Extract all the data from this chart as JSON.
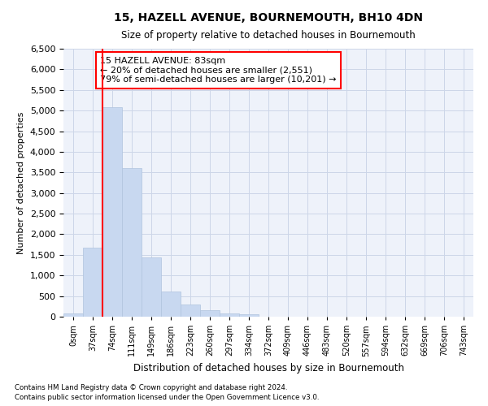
{
  "title": "15, HAZELL AVENUE, BOURNEMOUTH, BH10 4DN",
  "subtitle": "Size of property relative to detached houses in Bournemouth",
  "xlabel": "Distribution of detached houses by size in Bournemouth",
  "ylabel": "Number of detached properties",
  "footnote1": "Contains HM Land Registry data © Crown copyright and database right 2024.",
  "footnote2": "Contains public sector information licensed under the Open Government Licence v3.0.",
  "bar_labels": [
    "0sqm",
    "37sqm",
    "74sqm",
    "111sqm",
    "149sqm",
    "186sqm",
    "223sqm",
    "260sqm",
    "297sqm",
    "334sqm",
    "372sqm",
    "409sqm",
    "446sqm",
    "483sqm",
    "520sqm",
    "557sqm",
    "594sqm",
    "632sqm",
    "669sqm",
    "706sqm",
    "743sqm"
  ],
  "bar_values": [
    80,
    1670,
    5080,
    3600,
    1430,
    620,
    295,
    155,
    80,
    50,
    0,
    0,
    0,
    0,
    0,
    0,
    0,
    0,
    0,
    0,
    0
  ],
  "bar_color": "#c8d8f0",
  "bar_edge_color": "#b0c4de",
  "red_line_bin": 2,
  "annotation_title": "15 HAZELL AVENUE: 83sqm",
  "annotation_line1": "← 20% of detached houses are smaller (2,551)",
  "annotation_line2": "79% of semi-detached houses are larger (10,201) →",
  "ylim_max": 6500,
  "ytick_step": 500,
  "grid_color": "#ccd6e8",
  "bg_color": "#eef2fa"
}
